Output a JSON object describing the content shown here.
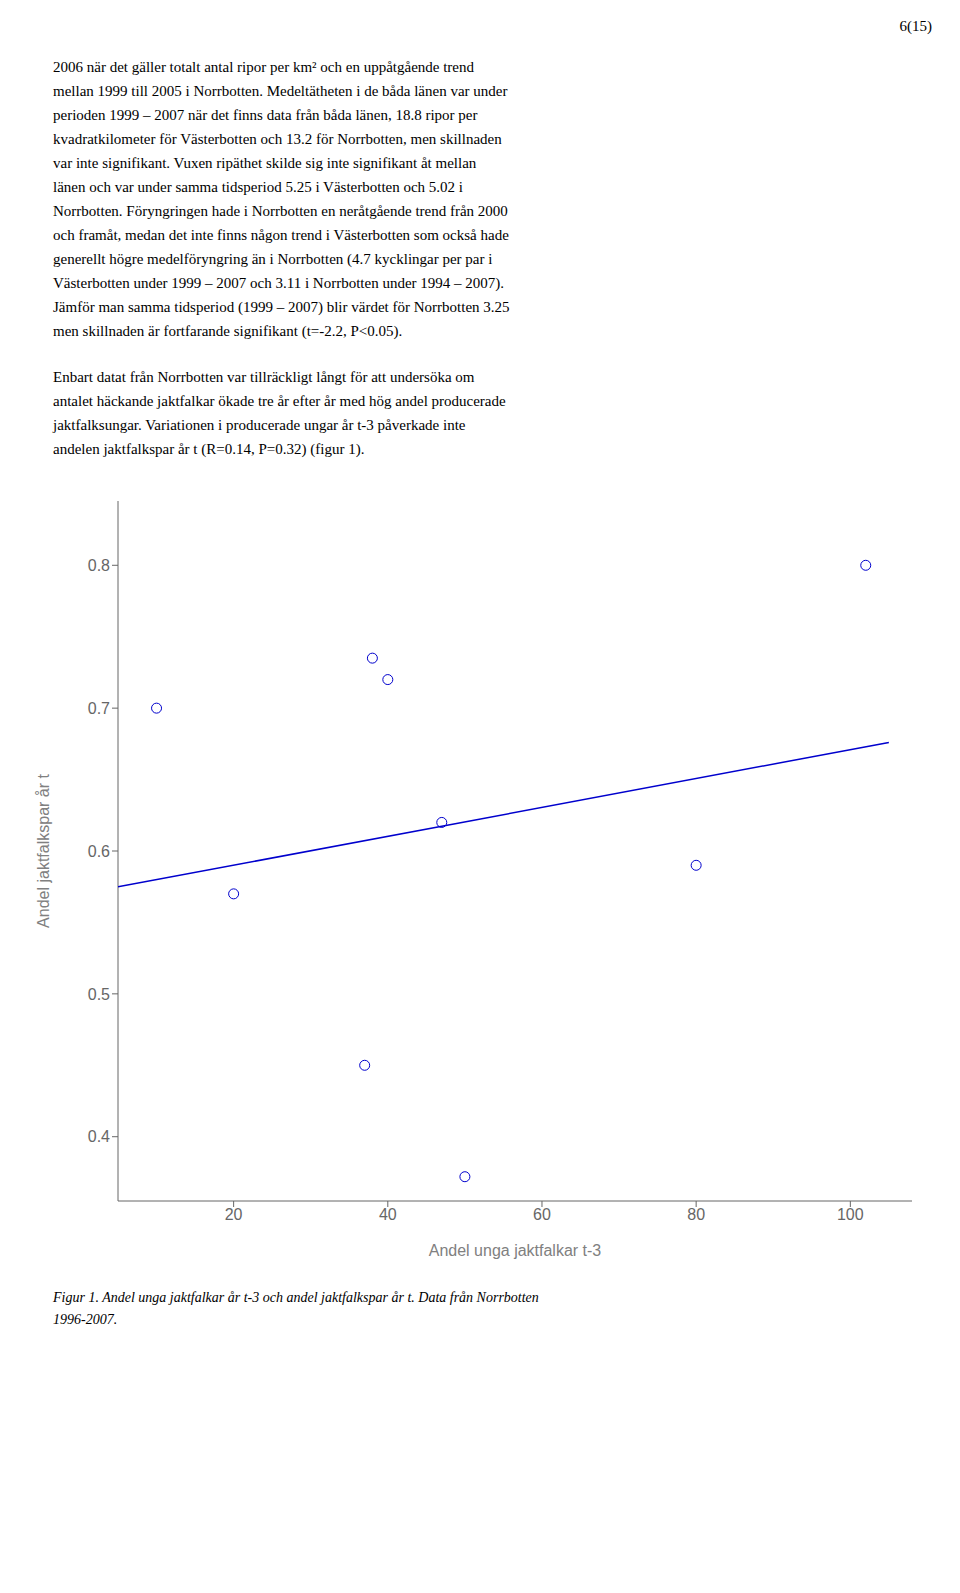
{
  "chart_data": {
    "type": "scatter",
    "xlabel": "Andel unga jaktfalkar t-3",
    "ylabel": "Andel jaktfalkspar år t",
    "xlim": [
      5,
      108
    ],
    "ylim": [
      0.355,
      0.845
    ],
    "xticks": [
      20,
      40,
      60,
      80,
      100
    ],
    "yticks": [
      0.4,
      0.5,
      0.6,
      0.7,
      0.8
    ],
    "grid": false,
    "series": [
      {
        "type": "scatter",
        "color": "#0000CD",
        "marker": "circle",
        "x": [
          10,
          20,
          37,
          38,
          40,
          47,
          50,
          80,
          102
        ],
        "values": [
          0.7,
          0.57,
          0.45,
          0.735,
          0.72,
          0.62,
          0.372,
          0.59,
          0.8
        ]
      },
      {
        "type": "line",
        "color": "#0000CD",
        "x": [
          5,
          105
        ],
        "values": [
          0.5749,
          0.676
        ]
      }
    ],
    "annotations": [
      [
        "6(15)"
      ],
      [
        "2006 när det gäller totalt antal ripor per km² och en uppåtgående trend",
        "mellan 1999 till 2005 i Norrbotten. Medeltätheten i de båda länen var under",
        "perioden 1999 – 2007 när det finns data från båda länen, 18.8 ripor per",
        "kvadratkilometer för Västerbotten och 13.2 för Norrbotten, men skillnaden",
        "var inte signifikant. Vuxen ripäthet skilde sig inte signifikant åt mellan",
        "länen och var under samma tidsperiod 5.25 i Västerbotten och 5.02 i",
        "Norrbotten. Föryngringen hade i Norrbotten en neråtgående trend från 2000",
        "och framåt, medan det inte finns någon trend i Västerbotten som också hade",
        "generellt högre medelföryngring än i Norrbotten (4.7 kycklingar per par i",
        "Västerbotten under 1999 – 2007 och 3.11 i Norrbotten under 1994 – 2007).",
        "Jämför man samma tidsperiod (1999 – 2007) blir värdet för Norrbotten 3.25",
        "men skillnaden är fortfarande signifikant (t=-2.2, P<0.05)."
      ],
      [
        "Enbart datat från Norrbotten var tillräckligt långt för att undersöka om",
        "antalet häckande jaktfalkar ökade tre år efter år med hög andel producerade",
        "jaktfalksungar. Variationen i producerade ungar år t-3 påverkade inte",
        "andelen jaktfalkspar år t (R=0.14, P=0.32) (figur 1)."
      ],
      [
        "Figur 1. Andel unga jaktfalkar år t-3 och andel jaktfalkspar år t. Data från Norrbotten",
        "1996-2007."
      ]
    ]
  }
}
